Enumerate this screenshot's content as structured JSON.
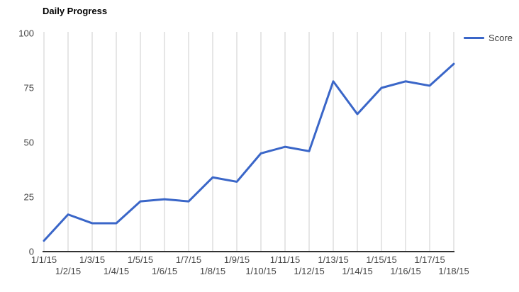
{
  "title": "Daily Progress",
  "legend": {
    "label": "Score",
    "position": "right"
  },
  "colors": {
    "series_line": "#3a66c8",
    "gridline": "#cccccc",
    "axis_baseline": "#333333",
    "axis_label": "#444444",
    "title_text": "#000000"
  },
  "chart_data": {
    "type": "line",
    "title": "Daily Progress",
    "x": [
      "1/1/15",
      "1/2/15",
      "1/3/15",
      "1/4/15",
      "1/5/15",
      "1/6/15",
      "1/7/15",
      "1/8/15",
      "1/9/15",
      "1/10/15",
      "1/11/15",
      "1/12/15",
      "1/13/15",
      "1/14/15",
      "1/15/15",
      "1/16/15",
      "1/17/15",
      "1/18/15"
    ],
    "series": [
      {
        "name": "Score",
        "values": [
          5,
          17,
          13,
          13,
          23,
          24,
          23,
          34,
          32,
          45,
          48,
          46,
          78,
          63,
          75,
          78,
          76,
          86
        ]
      }
    ],
    "xlabel": "",
    "ylabel": "",
    "ylim": [
      0,
      100
    ],
    "yticks": [
      0,
      25,
      50,
      75,
      100
    ],
    "grid": "vertical-only",
    "x_label_layout": "alternating-two-rows",
    "legend_position": "right"
  }
}
